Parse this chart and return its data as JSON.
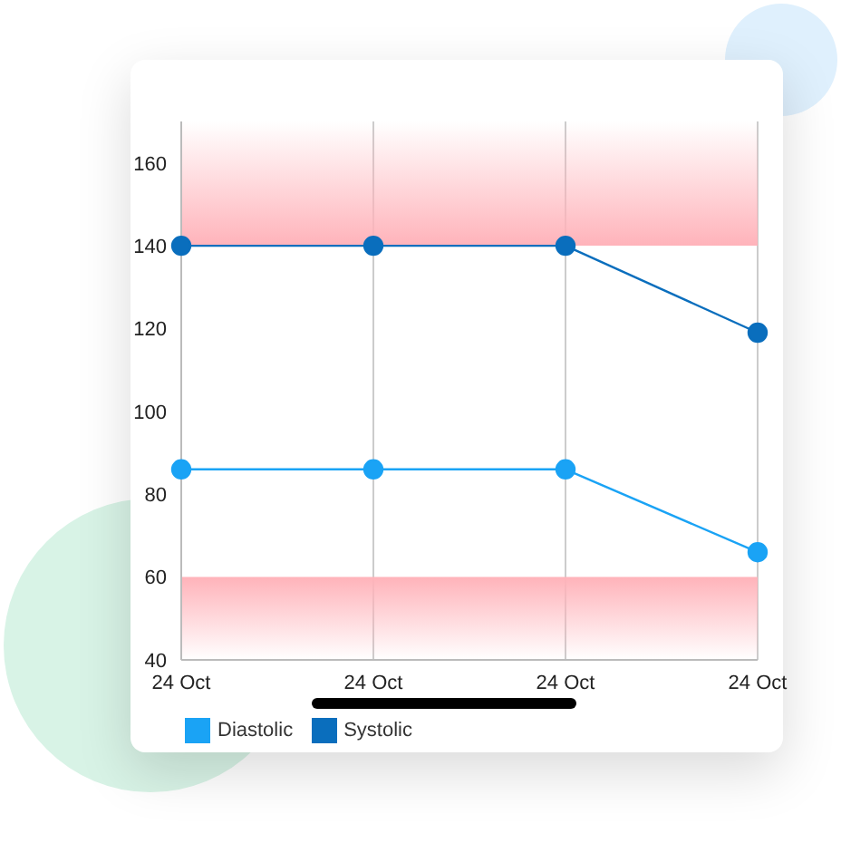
{
  "chart_data": {
    "type": "line",
    "categories": [
      "24 Oct",
      "24 Oct",
      "24 Oct",
      "24 Oct"
    ],
    "series": [
      {
        "name": "Diastolic",
        "color": "#1aa3f5",
        "values": [
          86,
          86,
          86,
          66
        ]
      },
      {
        "name": "Systolic",
        "color": "#0a6ebd",
        "values": [
          140,
          140,
          140,
          119
        ]
      }
    ],
    "ylim": [
      40,
      170
    ],
    "yticks": [
      40,
      60,
      80,
      100,
      120,
      140,
      160
    ],
    "bands": [
      {
        "axis": "y",
        "from": 140,
        "to": 170,
        "color": "#ffb3ba"
      },
      {
        "axis": "y",
        "from": 40,
        "to": 60,
        "color": "#ffb3ba"
      }
    ],
    "grid": "x",
    "legend": "bottom left",
    "marker": "circle",
    "line_style": "solid"
  }
}
